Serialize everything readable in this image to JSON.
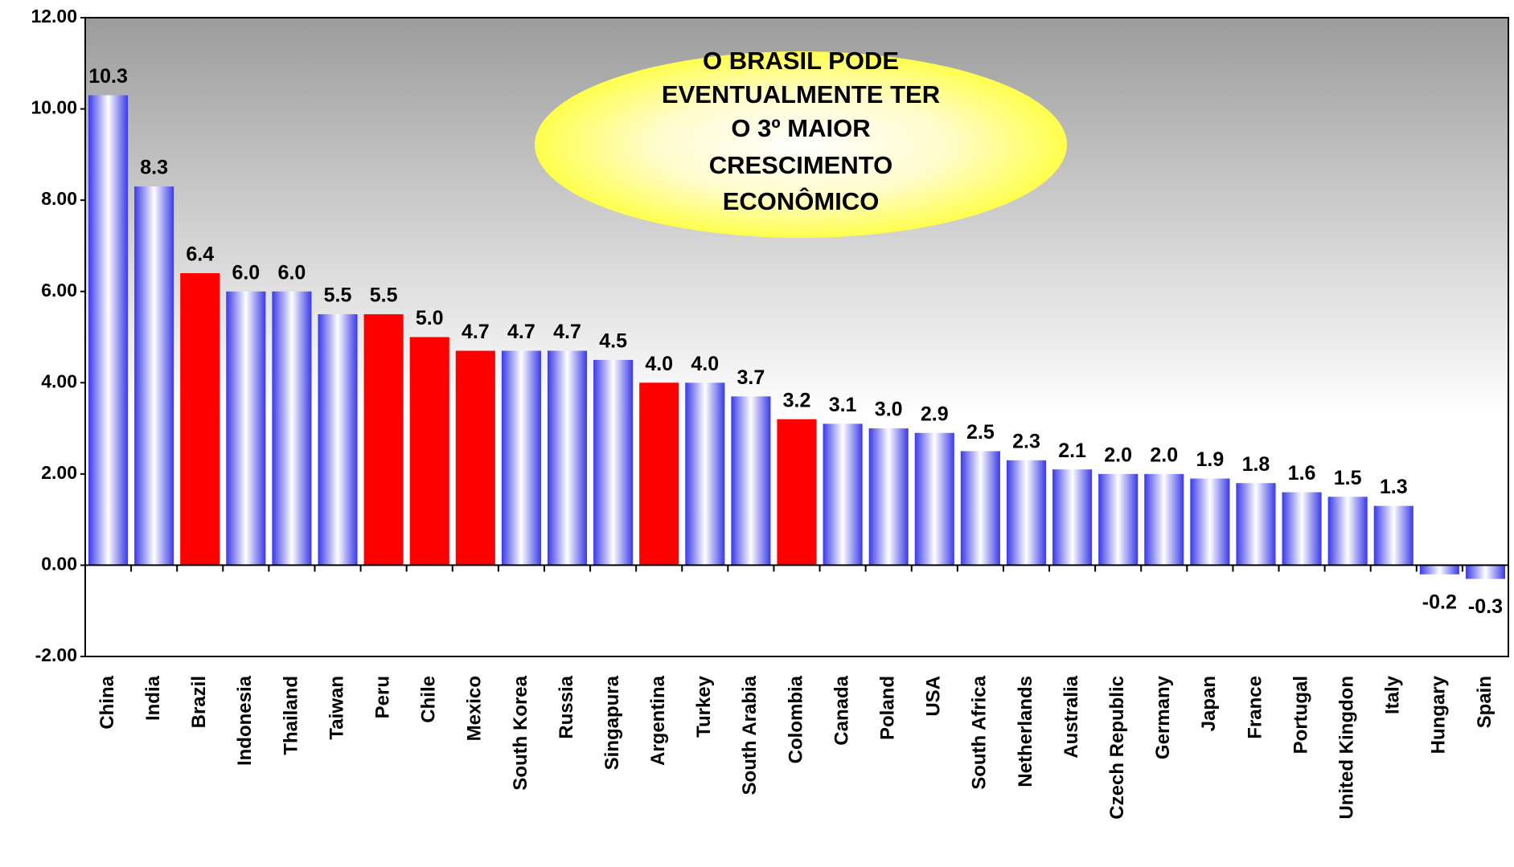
{
  "chart_data": {
    "type": "bar",
    "categories": [
      "China",
      "India",
      "Brazil",
      "Indonesia",
      "Thailand",
      "Taiwan",
      "Peru",
      "Chile",
      "Mexico",
      "South Korea",
      "Russia",
      "Singapura",
      "Argentina",
      "Turkey",
      "South Arabia",
      "Colombia",
      "Canada",
      "Poland",
      "USA",
      "South Africa",
      "Netherlands",
      "Australia",
      "Czech Republic",
      "Germany",
      "Japan",
      "France",
      "Portugal",
      "United Kingdon",
      "Italy",
      "Hungary",
      "Spain"
    ],
    "values": [
      10.3,
      8.3,
      6.4,
      6.0,
      6.0,
      5.5,
      5.5,
      5.0,
      4.7,
      4.7,
      4.7,
      4.5,
      4.0,
      4.0,
      3.7,
      3.2,
      3.1,
      3.0,
      2.9,
      2.5,
      2.3,
      2.1,
      2.0,
      2.0,
      1.9,
      1.8,
      1.6,
      1.5,
      1.3,
      -0.2,
      -0.3
    ],
    "value_labels": [
      "10.3",
      "8.3",
      "6.4",
      "6.0",
      "6.0",
      "5.5",
      "5.5",
      "5.0",
      "4.7",
      "4.7",
      "4.7",
      "4.5",
      "4.0",
      "4.0",
      "3.7",
      "3.2",
      "3.1",
      "3.0",
      "2.9",
      "2.5",
      "2.3",
      "2.1",
      "2.0",
      "2.0",
      "1.9",
      "1.8",
      "1.6",
      "1.5",
      "1.3",
      "-0.2",
      "-0.3"
    ],
    "color": "#3a3ae8",
    "colors": [
      "#3a3ae8",
      "#3a3ae8",
      "#ff0000",
      "#3a3ae8",
      "#3a3ae8",
      "#3a3ae8",
      "#ff0000",
      "#ff0000",
      "#ff0000",
      "#3a3ae8",
      "#3a3ae8",
      "#3a3ae8",
      "#ff0000",
      "#3a3ae8",
      "#3a3ae8",
      "#ff0000",
      "#3a3ae8",
      "#3a3ae8",
      "#3a3ae8",
      "#3a3ae8",
      "#3a3ae8",
      "#3a3ae8",
      "#3a3ae8",
      "#3a3ae8",
      "#3a3ae8",
      "#3a3ae8",
      "#3a3ae8",
      "#3a3ae8",
      "#3a3ae8",
      "#3a3ae8",
      "#3a3ae8"
    ],
    "ylim": [
      -2,
      12
    ],
    "yticks": [
      {
        "value": -2,
        "label": "-2.00"
      },
      {
        "value": 0,
        "label": "0.00"
      },
      {
        "value": 2,
        "label": "2.00"
      },
      {
        "value": 4,
        "label": "4.00"
      },
      {
        "value": 6,
        "label": "6.00"
      },
      {
        "value": 8,
        "label": "8.00"
      },
      {
        "value": 10,
        "label": "10.00"
      },
      {
        "value": 12,
        "label": "12.00"
      }
    ],
    "annotation": [
      "O BRASIL PODE",
      "EVENTUALMENTE TER",
      "O 3º MAIOR",
      "CRESCIMENTO",
      "ECONÔMICO"
    ]
  }
}
